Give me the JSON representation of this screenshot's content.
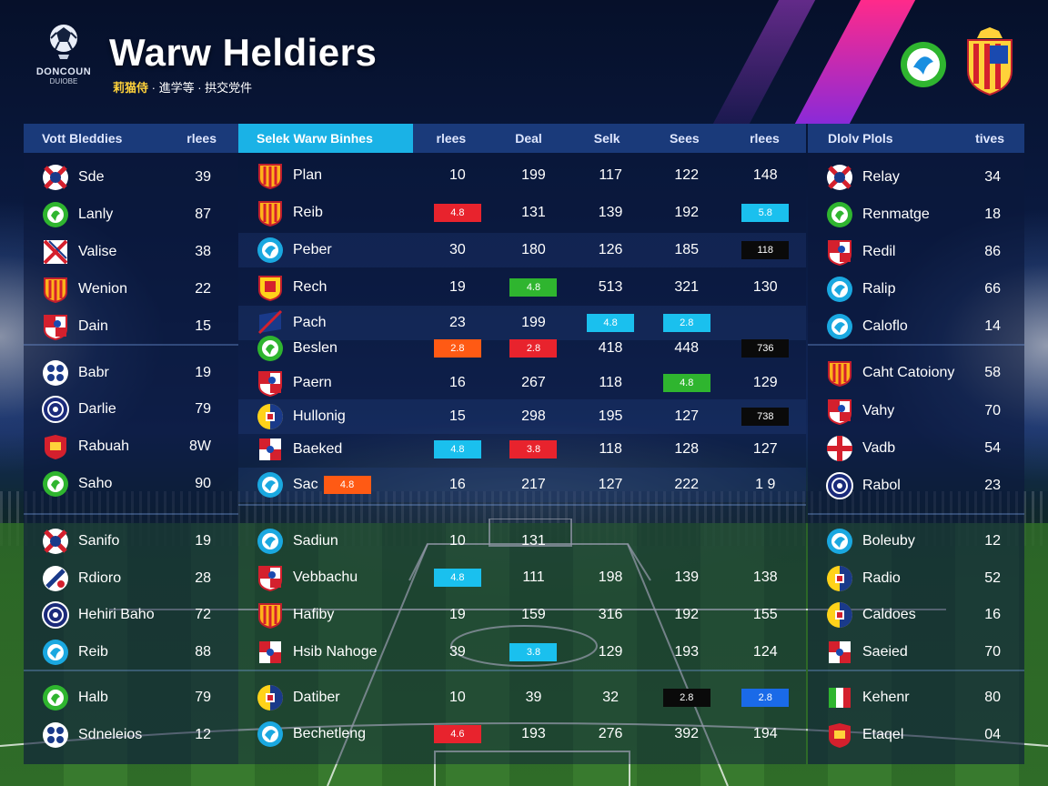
{
  "header": {
    "logo_text": "DONCOUN",
    "logo_sub": "DUIOBE",
    "title": "Warw Heldiers",
    "subtitle_hl": "莉猫侍",
    "subtitle_rest": "· 進学等 · 拱交党件"
  },
  "left": {
    "header": "Vott Bleddies",
    "header_val": "rlees",
    "rows": [
      {
        "name": "Sde",
        "val": "39",
        "badge": "redcross"
      },
      {
        "name": "Lanly",
        "val": "87",
        "badge": "green"
      },
      {
        "name": "Valise",
        "val": "38",
        "badge": "redx"
      },
      {
        "name": "Wenion",
        "val": "22",
        "badge": "yellowshield"
      },
      {
        "name": "Dain",
        "val": "15",
        "badge": "redwhite"
      },
      {
        "name": "Babr",
        "val": "19",
        "badge": "bluedots"
      },
      {
        "name": "Darlie",
        "val": "79",
        "badge": "blueround"
      },
      {
        "name": "Rabuah",
        "val": "8W",
        "badge": "redshield"
      },
      {
        "name": "Saho",
        "val": "90",
        "badge": "green"
      },
      {
        "name": "Sanifo",
        "val": "19",
        "badge": "redcross"
      },
      {
        "name": "Rdioro",
        "val": "28",
        "badge": "bluex"
      },
      {
        "name": "Hehiri Baho",
        "val": "72",
        "badge": "blueround"
      },
      {
        "name": "Reib",
        "val": "88",
        "badge": "cyan"
      },
      {
        "name": "Halb",
        "val": "79",
        "badge": "green"
      },
      {
        "name": "Sdneleios",
        "val": "12",
        "badge": "bluedots"
      }
    ]
  },
  "mid": {
    "header": "Selek Warw Binhes",
    "columns": [
      "rlees",
      "Deal",
      "Selk",
      "Sees",
      "rlees"
    ],
    "rows": [
      {
        "name": "Plan",
        "badge": "yellowshield",
        "cells": [
          "10",
          "199",
          "117",
          "122",
          "148"
        ],
        "chips": [
          null,
          null,
          null,
          null,
          null
        ]
      },
      {
        "name": "Reib",
        "badge": "yellowshield",
        "cells": [
          "",
          "131",
          "139",
          "192",
          ""
        ],
        "chips": [
          {
            "c": "red",
            "t": "4.8"
          },
          null,
          null,
          null,
          {
            "c": "cyan",
            "t": "5.8"
          }
        ]
      },
      {
        "name": "Peber",
        "badge": "cyan",
        "cells": [
          "30",
          "180",
          "126",
          "185",
          ""
        ],
        "chips": [
          null,
          null,
          null,
          null,
          {
            "c": "black",
            "t": "118"
          }
        ]
      },
      {
        "name": "Rech",
        "badge": "yellowshield2",
        "cells": [
          "19",
          "",
          "513",
          "321",
          "130"
        ],
        "chips": [
          null,
          {
            "c": "green",
            "t": "4.8"
          },
          null,
          null,
          null
        ]
      },
      {
        "name": "Pach",
        "badge": "blueflag",
        "cells": [
          "23",
          "199",
          "",
          "",
          ""
        ],
        "chips": [
          null,
          null,
          {
            "c": "cyan",
            "t": "4.8"
          },
          {
            "c": "cyan",
            "t": "2.8"
          },
          null
        ]
      },
      {
        "name": "Beslen",
        "badge": "green",
        "cells": [
          "",
          "",
          "418",
          "448",
          ""
        ],
        "chips": [
          {
            "c": "orange",
            "t": "2.8"
          },
          {
            "c": "red",
            "t": "2.8"
          },
          null,
          null,
          {
            "c": "black",
            "t": "736"
          }
        ]
      },
      {
        "name": "Paern",
        "badge": "redwhite",
        "cells": [
          "16",
          "267",
          "118",
          "",
          "129"
        ],
        "chips": [
          null,
          null,
          null,
          {
            "c": "green",
            "t": "4.8"
          },
          null
        ]
      },
      {
        "name": "Hullonig",
        "badge": "yellowblue",
        "cells": [
          "15",
          "298",
          "195",
          "127",
          ""
        ],
        "chips": [
          null,
          null,
          null,
          null,
          {
            "c": "black",
            "t": "738"
          }
        ]
      },
      {
        "name": "Baeked",
        "badge": "redflag",
        "cells": [
          "",
          "",
          "118",
          "128",
          "127"
        ],
        "chips": [
          {
            "c": "cyan",
            "t": "4.8"
          },
          {
            "c": "red",
            "t": "3.8"
          },
          null,
          null,
          null
        ]
      },
      {
        "name": "Sac",
        "badge": "cyan",
        "inline_chip": {
          "c": "orange",
          "t": "4.8"
        },
        "cells": [
          "16",
          "217",
          "127",
          "222",
          "1 9"
        ],
        "chips": [
          null,
          null,
          null,
          null,
          null
        ]
      },
      {
        "name": "Sadiun",
        "badge": "cyan",
        "cells": [
          "10",
          "131",
          "",
          "",
          ""
        ],
        "chips": [
          null,
          null,
          null,
          null,
          null
        ]
      },
      {
        "name": "Vebbachu",
        "badge": "redwhite",
        "cells": [
          "",
          "111",
          "198",
          "139",
          "138"
        ],
        "chips": [
          {
            "c": "cyan",
            "t": "4.8"
          },
          null,
          null,
          null,
          null
        ]
      },
      {
        "name": "Hafiby",
        "badge": "yellowshield",
        "cells": [
          "19",
          "159",
          "316",
          "192",
          "155"
        ],
        "chips": [
          null,
          null,
          null,
          null,
          null
        ]
      },
      {
        "name": "Hsib Nahoge",
        "badge": "redflag",
        "cells": [
          "39",
          "",
          "129",
          "193",
          "124"
        ],
        "chips": [
          null,
          {
            "c": "cyan",
            "t": "3.8"
          },
          null,
          null,
          null
        ]
      },
      {
        "name": "Datiber",
        "badge": "yellowblue",
        "cells": [
          "10",
          "39",
          "32",
          "",
          ""
        ],
        "chips": [
          null,
          null,
          null,
          {
            "c": "black",
            "t": "2.8"
          },
          {
            "c": "blue",
            "t": "2.8"
          }
        ]
      },
      {
        "name": "Bechetleng",
        "badge": "cyan",
        "cells": [
          "",
          "193",
          "276",
          "392",
          "194"
        ],
        "chips": [
          {
            "c": "red",
            "t": "4.6"
          },
          null,
          null,
          null,
          null
        ]
      }
    ]
  },
  "right": {
    "header": "Dlolv Plols",
    "header_val": "tives",
    "rows": [
      {
        "name": "Relay",
        "val": "34",
        "badge": "redcross"
      },
      {
        "name": "Renmatge",
        "val": "18",
        "badge": "green"
      },
      {
        "name": "Redil",
        "val": "86",
        "badge": "redwhite"
      },
      {
        "name": "Ralip",
        "val": "66",
        "badge": "cyan"
      },
      {
        "name": "Caloflo",
        "val": "14",
        "badge": "cyan"
      },
      {
        "name": "Caht Catoiony",
        "val": "58",
        "badge": "yellowshield"
      },
      {
        "name": "Vahy",
        "val": "70",
        "badge": "redwhite"
      },
      {
        "name": "Vadb",
        "val": "54",
        "badge": "england"
      },
      {
        "name": "Rabol",
        "val": "23",
        "badge": "blueround"
      },
      {
        "name": "Boleuby",
        "val": "12",
        "badge": "cyan"
      },
      {
        "name": "Radio",
        "val": "52",
        "badge": "yellowblue"
      },
      {
        "name": "Caldoes",
        "val": "16",
        "badge": "yellowblue"
      },
      {
        "name": "Saeied",
        "val": "70",
        "badge": "redflag"
      },
      {
        "name": "Kehenr",
        "val": "80",
        "badge": "italy"
      },
      {
        "name": "Etaqel",
        "val": "04",
        "badge": "redshield"
      }
    ]
  }
}
